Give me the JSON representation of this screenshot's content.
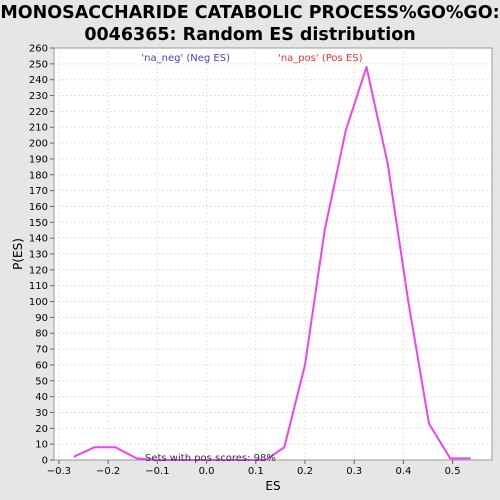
{
  "chart_data": {
    "type": "line",
    "title_line1": "MONOSACCHARIDE CATABOLIC PROCESS%GO%GO:",
    "title_line2": "0046365: Random ES distribution",
    "xlabel": "ES",
    "ylabel": "P(ES)",
    "xlim": [
      -0.31,
      0.58
    ],
    "ylim": [
      0,
      260
    ],
    "x_ticks": [
      -0.3,
      -0.2,
      -0.1,
      0.0,
      0.1,
      0.2,
      0.3,
      0.4,
      0.5
    ],
    "x_tick_labels": [
      "−0.3",
      "−0.2",
      "−0.1",
      "0.0",
      "0.1",
      "0.2",
      "0.3",
      "0.4",
      "0.5"
    ],
    "y_ticks": [
      0,
      10,
      20,
      30,
      40,
      50,
      60,
      70,
      80,
      90,
      100,
      110,
      120,
      130,
      140,
      150,
      160,
      170,
      180,
      190,
      200,
      210,
      220,
      230,
      240,
      250,
      260
    ],
    "grid": true,
    "legend_position": "top-center",
    "legend": [
      {
        "label": "'na_neg' (Neg ES)",
        "color": "#4444cc"
      },
      {
        "label": "'na_pos' (Pos ES)",
        "color": "#ee3333"
      }
    ],
    "annotation": "Sets with pos scores: 98%",
    "series": [
      {
        "color": "#ee44ee",
        "x": [
          -0.27,
          -0.228,
          -0.185,
          -0.142,
          -0.1,
          0.12,
          0.158,
          0.2,
          0.24,
          0.283,
          0.325,
          0.368,
          0.41,
          0.452,
          0.495,
          0.537
        ],
        "y": [
          2,
          8,
          8,
          1,
          0,
          0,
          8,
          60,
          145,
          208,
          248,
          187,
          100,
          23,
          1,
          1
        ]
      }
    ]
  }
}
